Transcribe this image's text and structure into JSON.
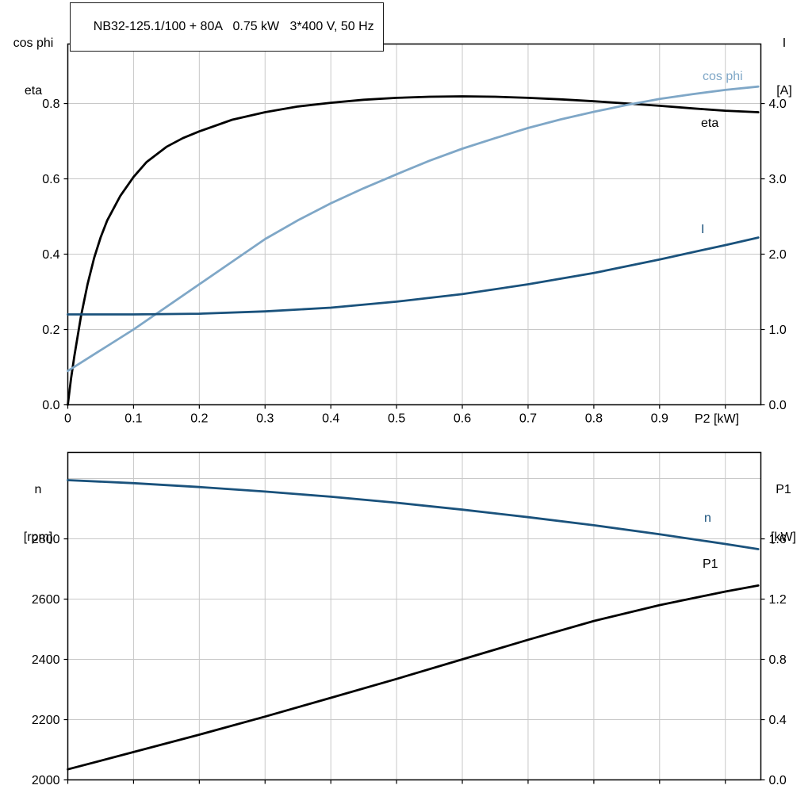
{
  "title": "NB32-125.1/100 + 80A   0.75 kW   3*400 V, 50 Hz",
  "corner_labels": {
    "top_left_line1": "cos phi",
    "top_left_line2": "eta",
    "top_right_line1": "I",
    "top_right_line2": "[A]",
    "bottom_left_line1": "n",
    "bottom_left_line2": "[rpm]",
    "bottom_right_line1": "P1",
    "bottom_right_line2": "[kW]"
  },
  "colors": {
    "black": "#000000",
    "light_blue": "#7FA7C7",
    "dark_blue": "#1A527C",
    "grid": "#C8C8C8",
    "frame": "#000000"
  },
  "chart_data": [
    {
      "type": "line",
      "title": "NB32-125.1/100 + 80A   0.75 kW   3*400 V, 50 Hz",
      "xlabel": "P2 [kW]",
      "ylabel_left": "cos phi / eta",
      "ylabel_right": "I [A]",
      "grid": true,
      "legend": "none",
      "x": {
        "min": 0,
        "max": 1.054,
        "ticks": [
          {
            "v": 0,
            "l": "0"
          },
          {
            "v": 0.1,
            "l": "0.1"
          },
          {
            "v": 0.2,
            "l": "0.2"
          },
          {
            "v": 0.3,
            "l": "0.3"
          },
          {
            "v": 0.4,
            "l": "0.4"
          },
          {
            "v": 0.5,
            "l": "0.5"
          },
          {
            "v": 0.6,
            "l": "0.6"
          },
          {
            "v": 0.7,
            "l": "0.7"
          },
          {
            "v": 0.8,
            "l": "0.8"
          },
          {
            "v": 0.9,
            "l": "0.9"
          },
          {
            "v": 1.0,
            "l": null
          }
        ]
      },
      "left": {
        "min": 0,
        "max": 0.958,
        "ticks": [
          {
            "v": 0,
            "l": "0.0"
          },
          {
            "v": 0.2,
            "l": "0.2"
          },
          {
            "v": 0.4,
            "l": "0.4"
          },
          {
            "v": 0.6,
            "l": "0.6"
          },
          {
            "v": 0.8,
            "l": "0.8"
          }
        ]
      },
      "right": {
        "min": 0,
        "max": 4.79,
        "ticks": [
          {
            "v": 0,
            "l": "0.0"
          },
          {
            "v": 1,
            "l": "1.0"
          },
          {
            "v": 2,
            "l": "2.0"
          },
          {
            "v": 3,
            "l": "3.0"
          },
          {
            "v": 4,
            "l": "4.0"
          }
        ]
      },
      "series": [
        {
          "name": "eta",
          "axis": "left",
          "color": "#000000",
          "width": 2.8,
          "x": [
            0,
            0.005,
            0.01,
            0.02,
            0.03,
            0.04,
            0.05,
            0.06,
            0.08,
            0.1,
            0.12,
            0.15,
            0.175,
            0.2,
            0.25,
            0.3,
            0.35,
            0.4,
            0.45,
            0.5,
            0.55,
            0.6,
            0.65,
            0.7,
            0.75,
            0.8,
            0.85,
            0.9,
            0.95,
            1.0,
            1.05
          ],
          "y": [
            0,
            0.07,
            0.13,
            0.235,
            0.32,
            0.39,
            0.445,
            0.49,
            0.555,
            0.605,
            0.645,
            0.685,
            0.708,
            0.726,
            0.757,
            0.777,
            0.792,
            0.802,
            0.81,
            0.815,
            0.818,
            0.819,
            0.818,
            0.815,
            0.811,
            0.806,
            0.8,
            0.794,
            0.787,
            0.781,
            0.777
          ]
        },
        {
          "name": "cos phi",
          "axis": "left",
          "color": "#7FA7C7",
          "width": 2.8,
          "x": [
            0,
            0.05,
            0.1,
            0.15,
            0.2,
            0.25,
            0.3,
            0.35,
            0.4,
            0.45,
            0.5,
            0.55,
            0.6,
            0.65,
            0.7,
            0.75,
            0.8,
            0.85,
            0.9,
            0.95,
            1.0,
            1.05
          ],
          "y": [
            0.09,
            0.145,
            0.2,
            0.26,
            0.32,
            0.38,
            0.44,
            0.49,
            0.535,
            0.575,
            0.612,
            0.648,
            0.68,
            0.708,
            0.735,
            0.758,
            0.778,
            0.796,
            0.812,
            0.825,
            0.836,
            0.845
          ]
        },
        {
          "name": "I",
          "axis": "right",
          "color": "#1A527C",
          "width": 2.8,
          "x": [
            0,
            0.1,
            0.2,
            0.3,
            0.4,
            0.5,
            0.6,
            0.7,
            0.8,
            0.9,
            1.0,
            1.05
          ],
          "y": [
            1.2,
            1.2,
            1.21,
            1.24,
            1.29,
            1.37,
            1.47,
            1.6,
            1.75,
            1.93,
            2.12,
            2.22
          ]
        }
      ]
    },
    {
      "type": "line",
      "title": null,
      "xlabel": null,
      "ylabel_left": "n [rpm]",
      "ylabel_right": "P1 [kW]",
      "grid": true,
      "legend": "none",
      "x": {
        "min": 0,
        "max": 1.054,
        "ticks": [
          {
            "v": 0,
            "l": null
          },
          {
            "v": 0.1,
            "l": null
          },
          {
            "v": 0.2,
            "l": null
          },
          {
            "v": 0.3,
            "l": null
          },
          {
            "v": 0.4,
            "l": null
          },
          {
            "v": 0.5,
            "l": null
          },
          {
            "v": 0.6,
            "l": null
          },
          {
            "v": 0.7,
            "l": null
          },
          {
            "v": 0.8,
            "l": null
          },
          {
            "v": 0.9,
            "l": null
          },
          {
            "v": 1.0,
            "l": null
          }
        ]
      },
      "left": {
        "min": 2000,
        "max": 3087,
        "ticks": [
          {
            "v": 2000,
            "l": "2000"
          },
          {
            "v": 2200,
            "l": "2200"
          },
          {
            "v": 2400,
            "l": "2400"
          },
          {
            "v": 2600,
            "l": "2600"
          },
          {
            "v": 2800,
            "l": "2800"
          },
          {
            "v": 3000,
            "l": null
          }
        ]
      },
      "right": {
        "min": 0,
        "max": 2.174,
        "ticks": [
          {
            "v": 0,
            "l": "0.0"
          },
          {
            "v": 0.4,
            "l": "0.4"
          },
          {
            "v": 0.8,
            "l": "0.8"
          },
          {
            "v": 1.2,
            "l": "1.2"
          },
          {
            "v": 1.6,
            "l": "1.6"
          },
          {
            "v": 2.0,
            "l": null
          }
        ]
      },
      "series": [
        {
          "name": "n",
          "axis": "left",
          "color": "#1A527C",
          "width": 2.8,
          "x": [
            0,
            0.1,
            0.2,
            0.3,
            0.4,
            0.5,
            0.6,
            0.7,
            0.8,
            0.9,
            1.0,
            1.05
          ],
          "y": [
            2995,
            2985,
            2972,
            2957,
            2940,
            2920,
            2897,
            2872,
            2845,
            2815,
            2783,
            2766
          ]
        },
        {
          "name": "P1",
          "axis": "right",
          "color": "#000000",
          "width": 2.8,
          "x": [
            0,
            0.1,
            0.2,
            0.3,
            0.4,
            0.5,
            0.6,
            0.7,
            0.8,
            0.9,
            1.0,
            1.05
          ],
          "y": [
            0.07,
            0.185,
            0.3,
            0.42,
            0.545,
            0.67,
            0.8,
            0.93,
            1.055,
            1.16,
            1.25,
            1.29
          ]
        }
      ]
    }
  ]
}
